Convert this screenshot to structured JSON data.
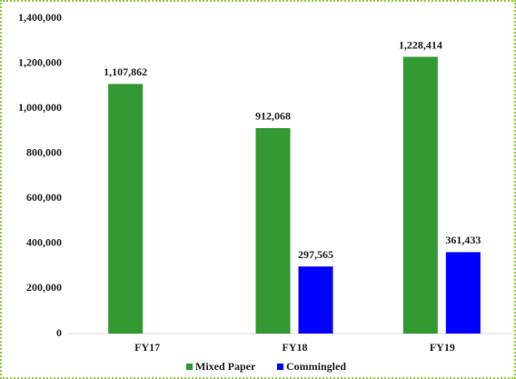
{
  "chart_data": {
    "type": "bar",
    "categories": [
      "FY17",
      "FY18",
      "FY19"
    ],
    "series": [
      {
        "name": "Mixed Paper",
        "color": "#339933",
        "values": [
          1107862,
          912068,
          1228414
        ],
        "value_labels": [
          "1,107,862",
          "912,068",
          "1,228,414"
        ]
      },
      {
        "name": "Commingled",
        "color": "#0000ff",
        "values": [
          null,
          297565,
          361433
        ],
        "value_labels": [
          null,
          "297,565",
          "361,433"
        ]
      }
    ],
    "ylim": [
      0,
      1400000
    ],
    "yticks": [
      0,
      {
        "value": 200000,
        "label": "200,000"
      },
      {
        "value": 400000,
        "label": "400,000"
      },
      {
        "value": 600000,
        "label": "600,000"
      },
      {
        "value": 800000,
        "label": "800,000"
      },
      {
        "value": 1000000,
        "label": "1,000,000"
      },
      {
        "value": 1200000,
        "label": "1,200,000"
      },
      {
        "value": 1400000,
        "label": "1,400,000"
      }
    ],
    "grid": false,
    "legend": "bottom"
  }
}
